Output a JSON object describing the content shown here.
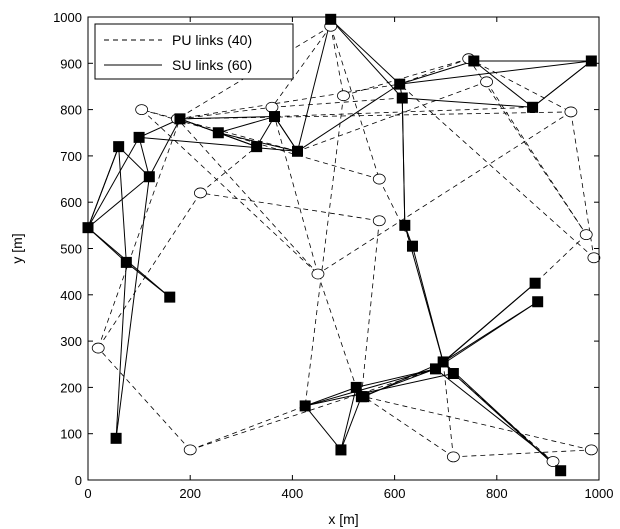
{
  "chart_data": {
    "type": "scatter",
    "xlabel": "x [m]",
    "ylabel": "y [m]",
    "xlim": [
      0,
      1000
    ],
    "ylim": [
      0,
      1000
    ],
    "xticks": [
      0,
      200,
      400,
      600,
      800,
      1000
    ],
    "yticks": [
      0,
      100,
      200,
      300,
      400,
      500,
      600,
      700,
      800,
      900,
      1000
    ],
    "grid": false,
    "legend_position": "top-left",
    "legend": [
      {
        "label": "PU links (40)",
        "style": "dashed"
      },
      {
        "label": "SU links (60)",
        "style": "solid"
      }
    ],
    "pu_nodes": [
      [
        475,
        980
      ],
      [
        500,
        830
      ],
      [
        745,
        910
      ],
      [
        780,
        860
      ],
      [
        945,
        795
      ],
      [
        975,
        530
      ],
      [
        990,
        480
      ],
      [
        360,
        805
      ],
      [
        175,
        780
      ],
      [
        105,
        800
      ],
      [
        220,
        620
      ],
      [
        570,
        650
      ],
      [
        570,
        560
      ],
      [
        450,
        445
      ],
      [
        20,
        285
      ],
      [
        200,
        65
      ],
      [
        715,
        50
      ],
      [
        910,
        40
      ],
      [
        985,
        65
      ]
    ],
    "su_nodes": [
      [
        475,
        995
      ],
      [
        610,
        855
      ],
      [
        755,
        905
      ],
      [
        985,
        905
      ],
      [
        870,
        805
      ],
      [
        615,
        825
      ],
      [
        365,
        785
      ],
      [
        180,
        780
      ],
      [
        100,
        740
      ],
      [
        60,
        720
      ],
      [
        255,
        750
      ],
      [
        330,
        720
      ],
      [
        410,
        710
      ],
      [
        120,
        655
      ],
      [
        0,
        545
      ],
      [
        620,
        550
      ],
      [
        635,
        505
      ],
      [
        75,
        470
      ],
      [
        160,
        395
      ],
      [
        55,
        90
      ],
      [
        875,
        425
      ],
      [
        880,
        385
      ],
      [
        695,
        255
      ],
      [
        680,
        240
      ],
      [
        715,
        230
      ],
      [
        525,
        200
      ],
      [
        535,
        180
      ],
      [
        540,
        180
      ],
      [
        425,
        160
      ],
      [
        495,
        65
      ],
      [
        925,
        20
      ]
    ],
    "pu_links": [
      [
        [
          475,
          980
        ],
        [
          570,
          650
        ]
      ],
      [
        [
          475,
          980
        ],
        [
          500,
          830
        ]
      ],
      [
        [
          475,
          980
        ],
        [
          360,
          805
        ]
      ],
      [
        [
          475,
          980
        ],
        [
          175,
          780
        ]
      ],
      [
        [
          745,
          910
        ],
        [
          975,
          530
        ]
      ],
      [
        [
          745,
          910
        ],
        [
          610,
          855
        ]
      ],
      [
        [
          745,
          910
        ],
        [
          945,
          795
        ]
      ],
      [
        [
          780,
          860
        ],
        [
          975,
          530
        ]
      ],
      [
        [
          780,
          860
        ],
        [
          410,
          710
        ]
      ],
      [
        [
          945,
          795
        ],
        [
          990,
          480
        ]
      ],
      [
        [
          945,
          795
        ],
        [
          180,
          780
        ]
      ],
      [
        [
          870,
          805
        ],
        [
          365,
          785
        ]
      ],
      [
        [
          175,
          780
        ],
        [
          610,
          855
        ]
      ],
      [
        [
          105,
          800
        ],
        [
          570,
          650
        ]
      ],
      [
        [
          105,
          800
        ],
        [
          450,
          445
        ]
      ],
      [
        [
          220,
          620
        ],
        [
          330,
          720
        ]
      ],
      [
        [
          220,
          620
        ],
        [
          20,
          285
        ]
      ],
      [
        [
          570,
          650
        ],
        [
          635,
          505
        ]
      ],
      [
        [
          570,
          560
        ],
        [
          535,
          180
        ]
      ],
      [
        [
          570,
          560
        ],
        [
          220,
          620
        ]
      ],
      [
        [
          450,
          445
        ],
        [
          365,
          785
        ]
      ],
      [
        [
          450,
          445
        ],
        [
          525,
          200
        ]
      ],
      [
        [
          450,
          445
        ],
        [
          175,
          780
        ]
      ],
      [
        [
          20,
          285
        ],
        [
          180,
          780
        ]
      ],
      [
        [
          200,
          65
        ],
        [
          20,
          285
        ]
      ],
      [
        [
          200,
          65
        ],
        [
          425,
          160
        ]
      ],
      [
        [
          200,
          65
        ],
        [
          680,
          240
        ]
      ],
      [
        [
          715,
          50
        ],
        [
          985,
          65
        ]
      ],
      [
        [
          715,
          50
        ],
        [
          540,
          180
        ]
      ],
      [
        [
          715,
          50
        ],
        [
          695,
          255
        ]
      ],
      [
        [
          910,
          40
        ],
        [
          715,
          230
        ]
      ],
      [
        [
          985,
          65
        ],
        [
          540,
          180
        ]
      ],
      [
        [
          975,
          530
        ],
        [
          875,
          425
        ]
      ],
      [
        [
          500,
          830
        ],
        [
          425,
          160
        ]
      ],
      [
        [
          500,
          830
        ],
        [
          745,
          910
        ]
      ],
      [
        [
          410,
          710
        ],
        [
          105,
          800
        ]
      ],
      [
        [
          180,
          780
        ],
        [
          360,
          805
        ]
      ],
      [
        [
          360,
          805
        ],
        [
          615,
          825
        ]
      ],
      [
        [
          945,
          795
        ],
        [
          450,
          445
        ]
      ],
      [
        [
          990,
          480
        ],
        [
          610,
          855
        ]
      ]
    ],
    "su_links": [
      [
        [
          475,
          995
        ],
        [
          610,
          855
        ]
      ],
      [
        [
          475,
          995
        ],
        [
          410,
          710
        ]
      ],
      [
        [
          475,
          995
        ],
        [
          615,
          825
        ]
      ],
      [
        [
          610,
          855
        ],
        [
          755,
          905
        ]
      ],
      [
        [
          610,
          855
        ],
        [
          985,
          905
        ]
      ],
      [
        [
          755,
          905
        ],
        [
          870,
          805
        ]
      ],
      [
        [
          755,
          905
        ],
        [
          985,
          905
        ]
      ],
      [
        [
          985,
          905
        ],
        [
          870,
          805
        ]
      ],
      [
        [
          615,
          825
        ],
        [
          870,
          805
        ]
      ],
      [
        [
          615,
          825
        ],
        [
          620,
          550
        ]
      ],
      [
        [
          610,
          855
        ],
        [
          410,
          710
        ]
      ],
      [
        [
          365,
          785
        ],
        [
          180,
          780
        ]
      ],
      [
        [
          365,
          785
        ],
        [
          410,
          710
        ]
      ],
      [
        [
          365,
          785
        ],
        [
          330,
          720
        ]
      ],
      [
        [
          365,
          785
        ],
        [
          255,
          750
        ]
      ],
      [
        [
          180,
          780
        ],
        [
          100,
          740
        ]
      ],
      [
        [
          180,
          780
        ],
        [
          255,
          750
        ]
      ],
      [
        [
          180,
          780
        ],
        [
          330,
          720
        ]
      ],
      [
        [
          180,
          780
        ],
        [
          120,
          655
        ]
      ],
      [
        [
          100,
          740
        ],
        [
          410,
          710
        ]
      ],
      [
        [
          100,
          740
        ],
        [
          0,
          545
        ]
      ],
      [
        [
          60,
          720
        ],
        [
          120,
          655
        ]
      ],
      [
        [
          60,
          720
        ],
        [
          0,
          545
        ]
      ],
      [
        [
          255,
          750
        ],
        [
          410,
          710
        ]
      ],
      [
        [
          120,
          655
        ],
        [
          0,
          545
        ]
      ],
      [
        [
          120,
          655
        ],
        [
          55,
          90
        ]
      ],
      [
        [
          0,
          545
        ],
        [
          75,
          470
        ]
      ],
      [
        [
          0,
          545
        ],
        [
          160,
          395
        ]
      ],
      [
        [
          75,
          470
        ],
        [
          160,
          395
        ]
      ],
      [
        [
          75,
          470
        ],
        [
          55,
          90
        ]
      ],
      [
        [
          60,
          720
        ],
        [
          75,
          470
        ]
      ],
      [
        [
          620,
          550
        ],
        [
          635,
          505
        ]
      ],
      [
        [
          635,
          505
        ],
        [
          695,
          255
        ]
      ],
      [
        [
          620,
          550
        ],
        [
          695,
          255
        ]
      ],
      [
        [
          695,
          255
        ],
        [
          875,
          425
        ]
      ],
      [
        [
          695,
          255
        ],
        [
          880,
          385
        ]
      ],
      [
        [
          680,
          240
        ],
        [
          875,
          425
        ]
      ],
      [
        [
          680,
          240
        ],
        [
          880,
          385
        ]
      ],
      [
        [
          715,
          230
        ],
        [
          695,
          255
        ]
      ],
      [
        [
          715,
          230
        ],
        [
          925,
          20
        ]
      ],
      [
        [
          680,
          240
        ],
        [
          910,
          40
        ]
      ],
      [
        [
          695,
          255
        ],
        [
          925,
          20
        ]
      ],
      [
        [
          680,
          240
        ],
        [
          525,
          200
        ]
      ],
      [
        [
          680,
          240
        ],
        [
          535,
          180
        ]
      ],
      [
        [
          695,
          255
        ],
        [
          540,
          180
        ]
      ],
      [
        [
          715,
          230
        ],
        [
          425,
          160
        ]
      ],
      [
        [
          525,
          200
        ],
        [
          495,
          65
        ]
      ],
      [
        [
          425,
          160
        ],
        [
          495,
          65
        ]
      ],
      [
        [
          425,
          160
        ],
        [
          525,
          200
        ]
      ],
      [
        [
          535,
          180
        ],
        [
          540,
          180
        ]
      ],
      [
        [
          525,
          200
        ],
        [
          540,
          180
        ]
      ],
      [
        [
          495,
          65
        ],
        [
          535,
          180
        ]
      ],
      [
        [
          680,
          240
        ],
        [
          425,
          160
        ]
      ],
      [
        [
          365,
          785
        ],
        [
          410,
          710
        ]
      ],
      [
        [
          330,
          720
        ],
        [
          255,
          750
        ]
      ],
      [
        [
          100,
          740
        ],
        [
          120,
          655
        ]
      ],
      [
        [
          60,
          720
        ],
        [
          0,
          545
        ]
      ],
      [
        [
          620,
          550
        ],
        [
          615,
          825
        ]
      ],
      [
        [
          870,
          805
        ],
        [
          985,
          905
        ]
      ],
      [
        [
          610,
          855
        ],
        [
          615,
          825
        ]
      ]
    ]
  }
}
